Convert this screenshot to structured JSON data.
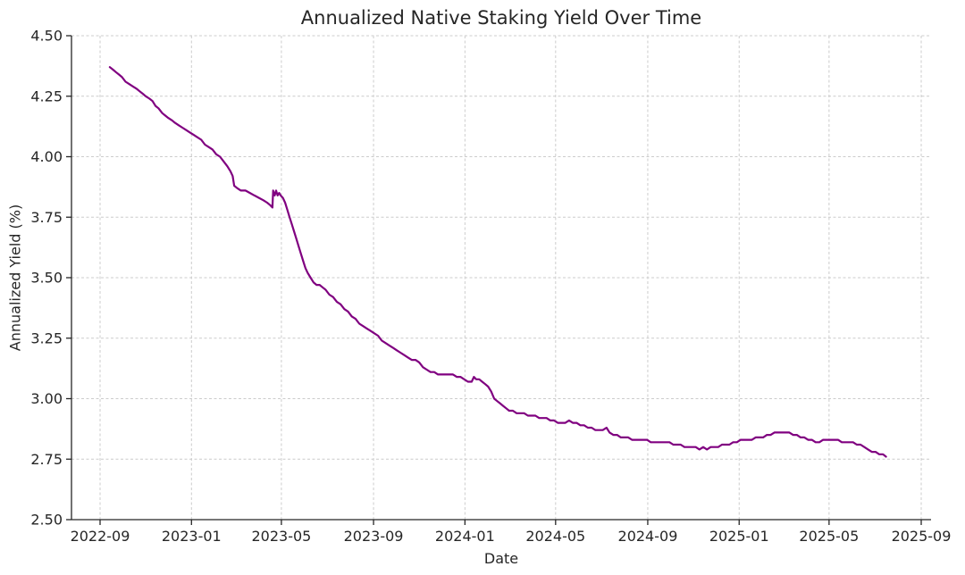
{
  "chart_data": {
    "type": "line",
    "title": "Annualized Native Staking Yield Over Time",
    "xlabel": "Date",
    "ylabel": "Annualized Yield (%)",
    "ylim": [
      2.5,
      4.5
    ],
    "x_range": [
      "2022-09-01",
      "2025-09-01"
    ],
    "x_tick_labels": [
      "2022-09",
      "2023-01",
      "2023-05",
      "2023-09",
      "2024-01",
      "2024-05",
      "2024-09",
      "2025-01",
      "2025-05",
      "2025-09"
    ],
    "y_tick_labels": [
      "4.50",
      "4.25",
      "4.00",
      "3.75",
      "3.50",
      "3.25",
      "3.00",
      "2.75",
      "2.50"
    ],
    "grid": "dashed",
    "legend": "none",
    "colors": {
      "line": "#800080",
      "axis": "#262626",
      "grid": "#cccccc",
      "text": "#262626",
      "background": "#ffffff"
    },
    "series": [
      {
        "points": [
          [
            "2022-09-14",
            4.37
          ],
          [
            "2022-09-18",
            4.36
          ],
          [
            "2022-09-22",
            4.35
          ],
          [
            "2022-09-26",
            4.34
          ],
          [
            "2022-09-30",
            4.33
          ],
          [
            "2022-10-05",
            4.31
          ],
          [
            "2022-10-10",
            4.3
          ],
          [
            "2022-10-15",
            4.29
          ],
          [
            "2022-10-20",
            4.28
          ],
          [
            "2022-10-24",
            4.27
          ],
          [
            "2022-10-28",
            4.26
          ],
          [
            "2022-11-01",
            4.25
          ],
          [
            "2022-11-06",
            4.24
          ],
          [
            "2022-11-10",
            4.23
          ],
          [
            "2022-11-14",
            4.21
          ],
          [
            "2022-11-18",
            4.2
          ],
          [
            "2022-11-23",
            4.18
          ],
          [
            "2022-11-27",
            4.17
          ],
          [
            "2022-12-01",
            4.16
          ],
          [
            "2022-12-06",
            4.15
          ],
          [
            "2022-12-10",
            4.14
          ],
          [
            "2022-12-15",
            4.13
          ],
          [
            "2022-12-20",
            4.12
          ],
          [
            "2022-12-25",
            4.11
          ],
          [
            "2022-12-30",
            4.1
          ],
          [
            "2023-01-04",
            4.09
          ],
          [
            "2023-01-09",
            4.08
          ],
          [
            "2023-01-14",
            4.07
          ],
          [
            "2023-01-19",
            4.05
          ],
          [
            "2023-01-24",
            4.04
          ],
          [
            "2023-01-29",
            4.03
          ],
          [
            "2023-02-03",
            4.01
          ],
          [
            "2023-02-08",
            4.0
          ],
          [
            "2023-02-13",
            3.98
          ],
          [
            "2023-02-18",
            3.96
          ],
          [
            "2023-02-22",
            3.94
          ],
          [
            "2023-02-25",
            3.92
          ],
          [
            "2023-02-27",
            3.88
          ],
          [
            "2023-03-03",
            3.87
          ],
          [
            "2023-03-08",
            3.86
          ],
          [
            "2023-03-14",
            3.86
          ],
          [
            "2023-03-20",
            3.85
          ],
          [
            "2023-03-26",
            3.84
          ],
          [
            "2023-04-01",
            3.83
          ],
          [
            "2023-04-07",
            3.82
          ],
          [
            "2023-04-12",
            3.81
          ],
          [
            "2023-04-16",
            3.8
          ],
          [
            "2023-04-19",
            3.79
          ],
          [
            "2023-04-20",
            3.86
          ],
          [
            "2023-04-22",
            3.84
          ],
          [
            "2023-04-24",
            3.86
          ],
          [
            "2023-04-26",
            3.84
          ],
          [
            "2023-04-28",
            3.85
          ],
          [
            "2023-04-30",
            3.84
          ],
          [
            "2023-05-03",
            3.83
          ],
          [
            "2023-05-06",
            3.81
          ],
          [
            "2023-05-09",
            3.78
          ],
          [
            "2023-05-12",
            3.75
          ],
          [
            "2023-05-15",
            3.72
          ],
          [
            "2023-05-18",
            3.69
          ],
          [
            "2023-05-21",
            3.66
          ],
          [
            "2023-05-24",
            3.63
          ],
          [
            "2023-05-27",
            3.6
          ],
          [
            "2023-05-30",
            3.57
          ],
          [
            "2023-06-02",
            3.54
          ],
          [
            "2023-06-05",
            3.52
          ],
          [
            "2023-06-09",
            3.5
          ],
          [
            "2023-06-13",
            3.48
          ],
          [
            "2023-06-17",
            3.47
          ],
          [
            "2023-06-21",
            3.47
          ],
          [
            "2023-06-25",
            3.46
          ],
          [
            "2023-06-29",
            3.45
          ],
          [
            "2023-07-04",
            3.43
          ],
          [
            "2023-07-09",
            3.42
          ],
          [
            "2023-07-14",
            3.4
          ],
          [
            "2023-07-19",
            3.39
          ],
          [
            "2023-07-24",
            3.37
          ],
          [
            "2023-07-29",
            3.36
          ],
          [
            "2023-08-03",
            3.34
          ],
          [
            "2023-08-08",
            3.33
          ],
          [
            "2023-08-13",
            3.31
          ],
          [
            "2023-08-18",
            3.3
          ],
          [
            "2023-08-23",
            3.29
          ],
          [
            "2023-08-28",
            3.28
          ],
          [
            "2023-09-02",
            3.27
          ],
          [
            "2023-09-07",
            3.26
          ],
          [
            "2023-09-12",
            3.24
          ],
          [
            "2023-09-17",
            3.23
          ],
          [
            "2023-09-22",
            3.22
          ],
          [
            "2023-09-27",
            3.21
          ],
          [
            "2023-10-02",
            3.2
          ],
          [
            "2023-10-07",
            3.19
          ],
          [
            "2023-10-12",
            3.18
          ],
          [
            "2023-10-17",
            3.17
          ],
          [
            "2023-10-22",
            3.16
          ],
          [
            "2023-10-27",
            3.16
          ],
          [
            "2023-11-01",
            3.15
          ],
          [
            "2023-11-06",
            3.13
          ],
          [
            "2023-11-11",
            3.12
          ],
          [
            "2023-11-16",
            3.11
          ],
          [
            "2023-11-21",
            3.11
          ],
          [
            "2023-11-26",
            3.1
          ],
          [
            "2023-12-01",
            3.1
          ],
          [
            "2023-12-06",
            3.1
          ],
          [
            "2023-12-11",
            3.1
          ],
          [
            "2023-12-16",
            3.1
          ],
          [
            "2023-12-21",
            3.09
          ],
          [
            "2023-12-26",
            3.09
          ],
          [
            "2023-12-31",
            3.08
          ],
          [
            "2024-01-05",
            3.07
          ],
          [
            "2024-01-10",
            3.07
          ],
          [
            "2024-01-13",
            3.09
          ],
          [
            "2024-01-16",
            3.08
          ],
          [
            "2024-01-20",
            3.08
          ],
          [
            "2024-01-24",
            3.07
          ],
          [
            "2024-01-28",
            3.06
          ],
          [
            "2024-02-01",
            3.05
          ],
          [
            "2024-02-05",
            3.03
          ],
          [
            "2024-02-09",
            3.0
          ],
          [
            "2024-02-13",
            2.99
          ],
          [
            "2024-02-17",
            2.98
          ],
          [
            "2024-02-21",
            2.97
          ],
          [
            "2024-02-25",
            2.96
          ],
          [
            "2024-02-29",
            2.95
          ],
          [
            "2024-03-05",
            2.95
          ],
          [
            "2024-03-10",
            2.94
          ],
          [
            "2024-03-15",
            2.94
          ],
          [
            "2024-03-20",
            2.94
          ],
          [
            "2024-03-25",
            2.93
          ],
          [
            "2024-03-30",
            2.93
          ],
          [
            "2024-04-04",
            2.93
          ],
          [
            "2024-04-09",
            2.92
          ],
          [
            "2024-04-14",
            2.92
          ],
          [
            "2024-04-19",
            2.92
          ],
          [
            "2024-04-24",
            2.91
          ],
          [
            "2024-04-29",
            2.91
          ],
          [
            "2024-05-04",
            2.9
          ],
          [
            "2024-05-09",
            2.9
          ],
          [
            "2024-05-14",
            2.9
          ],
          [
            "2024-05-19",
            2.91
          ],
          [
            "2024-05-24",
            2.9
          ],
          [
            "2024-05-29",
            2.9
          ],
          [
            "2024-06-03",
            2.89
          ],
          [
            "2024-06-08",
            2.89
          ],
          [
            "2024-06-13",
            2.88
          ],
          [
            "2024-06-18",
            2.88
          ],
          [
            "2024-06-23",
            2.87
          ],
          [
            "2024-06-28",
            2.87
          ],
          [
            "2024-07-03",
            2.87
          ],
          [
            "2024-07-08",
            2.88
          ],
          [
            "2024-07-12",
            2.86
          ],
          [
            "2024-07-17",
            2.85
          ],
          [
            "2024-07-22",
            2.85
          ],
          [
            "2024-07-27",
            2.84
          ],
          [
            "2024-08-01",
            2.84
          ],
          [
            "2024-08-06",
            2.84
          ],
          [
            "2024-08-11",
            2.83
          ],
          [
            "2024-08-16",
            2.83
          ],
          [
            "2024-08-21",
            2.83
          ],
          [
            "2024-08-26",
            2.83
          ],
          [
            "2024-08-31",
            2.83
          ],
          [
            "2024-09-05",
            2.82
          ],
          [
            "2024-09-10",
            2.82
          ],
          [
            "2024-09-15",
            2.82
          ],
          [
            "2024-09-20",
            2.82
          ],
          [
            "2024-09-25",
            2.82
          ],
          [
            "2024-09-30",
            2.82
          ],
          [
            "2024-10-05",
            2.81
          ],
          [
            "2024-10-10",
            2.81
          ],
          [
            "2024-10-15",
            2.81
          ],
          [
            "2024-10-20",
            2.8
          ],
          [
            "2024-10-25",
            2.8
          ],
          [
            "2024-10-30",
            2.8
          ],
          [
            "2024-11-04",
            2.8
          ],
          [
            "2024-11-09",
            2.79
          ],
          [
            "2024-11-14",
            2.8
          ],
          [
            "2024-11-19",
            2.79
          ],
          [
            "2024-11-24",
            2.8
          ],
          [
            "2024-11-29",
            2.8
          ],
          [
            "2024-12-04",
            2.8
          ],
          [
            "2024-12-09",
            2.81
          ],
          [
            "2024-12-14",
            2.81
          ],
          [
            "2024-12-19",
            2.81
          ],
          [
            "2024-12-24",
            2.82
          ],
          [
            "2024-12-29",
            2.82
          ],
          [
            "2025-01-03",
            2.83
          ],
          [
            "2025-01-08",
            2.83
          ],
          [
            "2025-01-13",
            2.83
          ],
          [
            "2025-01-18",
            2.83
          ],
          [
            "2025-01-23",
            2.84
          ],
          [
            "2025-01-28",
            2.84
          ],
          [
            "2025-02-02",
            2.84
          ],
          [
            "2025-02-07",
            2.85
          ],
          [
            "2025-02-12",
            2.85
          ],
          [
            "2025-02-17",
            2.86
          ],
          [
            "2025-02-22",
            2.86
          ],
          [
            "2025-02-27",
            2.86
          ],
          [
            "2025-03-04",
            2.86
          ],
          [
            "2025-03-09",
            2.86
          ],
          [
            "2025-03-14",
            2.85
          ],
          [
            "2025-03-19",
            2.85
          ],
          [
            "2025-03-24",
            2.84
          ],
          [
            "2025-03-29",
            2.84
          ],
          [
            "2025-04-03",
            2.83
          ],
          [
            "2025-04-08",
            2.83
          ],
          [
            "2025-04-13",
            2.82
          ],
          [
            "2025-04-18",
            2.82
          ],
          [
            "2025-04-23",
            2.83
          ],
          [
            "2025-04-28",
            2.83
          ],
          [
            "2025-05-03",
            2.83
          ],
          [
            "2025-05-08",
            2.83
          ],
          [
            "2025-05-13",
            2.83
          ],
          [
            "2025-05-18",
            2.82
          ],
          [
            "2025-05-23",
            2.82
          ],
          [
            "2025-05-28",
            2.82
          ],
          [
            "2025-06-02",
            2.82
          ],
          [
            "2025-06-07",
            2.81
          ],
          [
            "2025-06-12",
            2.81
          ],
          [
            "2025-06-17",
            2.8
          ],
          [
            "2025-06-22",
            2.79
          ],
          [
            "2025-06-27",
            2.78
          ],
          [
            "2025-07-02",
            2.78
          ],
          [
            "2025-07-07",
            2.77
          ],
          [
            "2025-07-12",
            2.77
          ],
          [
            "2025-07-16",
            2.76
          ]
        ]
      }
    ]
  }
}
